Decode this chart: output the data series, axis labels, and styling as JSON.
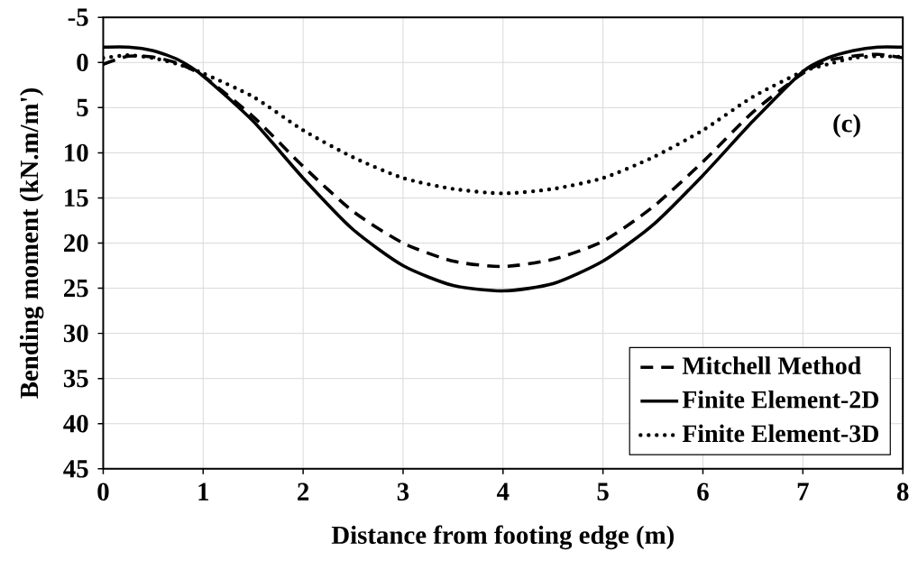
{
  "chart_data": {
    "type": "line",
    "xlabel": "Distance from footing edge (m)",
    "ylabel": "Bending moment  (kN.m/m')",
    "annotations": [
      "(c)"
    ],
    "x": [
      0,
      0.25,
      0.5,
      0.75,
      1,
      1.5,
      2,
      2.5,
      3,
      3.5,
      4,
      4.5,
      5,
      5.5,
      6,
      6.5,
      7,
      7.25,
      7.5,
      7.75,
      8
    ],
    "series": [
      {
        "name": "Mitchell Method",
        "color": "#000000",
        "line_style": "dashed",
        "values": [
          0.2,
          -0.7,
          -0.6,
          0.1,
          1.5,
          6,
          11.5,
          16.5,
          20,
          22,
          22.6,
          21.8,
          19.8,
          16,
          11,
          5.5,
          1.2,
          -0.2,
          -0.7,
          -0.9,
          -0.5
        ]
      },
      {
        "name": "Finite Element-2D",
        "color": "#000000",
        "line_style": "solid",
        "values": [
          -1.7,
          -1.7,
          -1.3,
          -0.3,
          1.5,
          6.5,
          12.8,
          18.5,
          22.5,
          24.7,
          25.3,
          24.5,
          22,
          18,
          12.5,
          6.5,
          1,
          -0.5,
          -1.3,
          -1.7,
          -1.7
        ]
      },
      {
        "name": "Finite Element-3D",
        "color": "#000000",
        "line_style": "dotted",
        "values": [
          -0.5,
          -0.8,
          -0.5,
          0.2,
          1.2,
          3.8,
          7.5,
          10.5,
          12.8,
          14,
          14.5,
          14,
          12.8,
          10.5,
          7.5,
          3.8,
          1.0,
          0.2,
          -0.5,
          -0.7,
          -0.6
        ]
      }
    ],
    "xlim": [
      0,
      8
    ],
    "xticks": [
      0,
      1,
      2,
      3,
      4,
      5,
      6,
      7,
      8
    ],
    "ylim": [
      45,
      -5
    ],
    "yticks": [
      -5,
      0,
      5,
      10,
      15,
      20,
      25,
      30,
      35,
      40,
      45
    ],
    "grid": true,
    "legend": "bottom right"
  }
}
